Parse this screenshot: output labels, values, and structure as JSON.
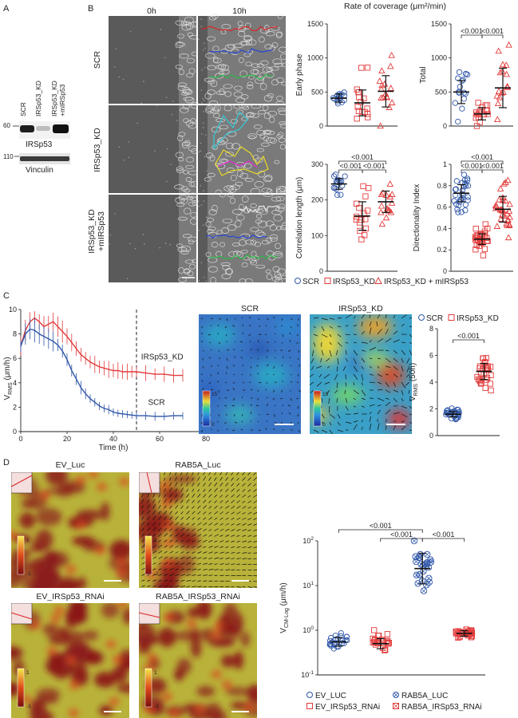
{
  "panels": {
    "A": {
      "letter": "A",
      "lanes": [
        "SCR",
        "IRSp53_KD",
        "IRSp53_KD +mIRSp53"
      ],
      "mw_top": "60",
      "mw_bottom": "110",
      "band1": "IRSp53",
      "band2": "Vinculin"
    },
    "B": {
      "letter": "B",
      "time0": "0h",
      "time10": "10h",
      "rows": [
        "SCR",
        "IRSp53_KD",
        "IRSp53_KD +mIRSp53"
      ],
      "title": "Rate of coverage (μm²/min)",
      "legend": [
        "SCR",
        "IRSp53_KD",
        "IRSp53_KD + mIRSp53"
      ]
    },
    "C": {
      "letter": "C",
      "map_titles": [
        "SCR",
        "IRSp53_KD"
      ],
      "cbar_max": "15",
      "cbar_min": "0",
      "legend": [
        "SCR",
        "IRSp53_KD"
      ]
    },
    "D": {
      "letter": "D",
      "map_titles": [
        "EV_Luc",
        "RAB5A_Luc",
        "EV_IRSp53_RNAi",
        "RAB5A_IRSp53_RNAi"
      ],
      "cbar_max": "1",
      "cbar_min": "-1",
      "legend": [
        "EV_LUC",
        "RAB5A_LUC",
        "EV_IRSp53_RNAi",
        "RAB5A_IRSp53_RNAi"
      ]
    }
  },
  "colors": {
    "blue": "#2f56a8",
    "red": "#e23b3b",
    "heat_bg": "#b8b23a",
    "heat_dark": "#8b1a1a"
  },
  "chart_data": [
    {
      "id": "early",
      "type": "scatter",
      "ylabel": "Early phase",
      "ylim": [
        0,
        1500
      ],
      "yticks": [
        0,
        500,
        1000,
        1500
      ],
      "groups": [
        "SCR",
        "IRSp53_KD",
        "IRSp53_KD + mIRSp53"
      ],
      "means": [
        410,
        340,
        510
      ],
      "sd": [
        60,
        190,
        230
      ],
      "annotations": []
    },
    {
      "id": "total",
      "type": "scatter",
      "ylabel": "Total",
      "ylim": [
        0,
        1500
      ],
      "yticks": [
        0,
        500,
        1000,
        1500
      ],
      "groups": [
        "SCR",
        "IRSp53_KD",
        "IRSp53_KD + mIRSp53"
      ],
      "means": [
        500,
        180,
        560
      ],
      "sd": [
        170,
        90,
        290
      ],
      "annotations": [
        {
          "from": 0,
          "to": 1,
          "label": "<0.001"
        },
        {
          "from": 1,
          "to": 2,
          "label": "<0.001"
        }
      ]
    },
    {
      "id": "corr",
      "type": "scatter",
      "ylabel": "Correlation length (μm)",
      "ylim": [
        0,
        300
      ],
      "yticks": [
        0,
        100,
        200,
        300
      ],
      "groups": [
        "SCR",
        "IRSp53_KD",
        "IRSp53_KD + mIRSp53"
      ],
      "means": [
        245,
        155,
        195
      ],
      "sd": [
        15,
        40,
        30
      ],
      "annotations": [
        {
          "from": 0,
          "to": 2,
          "label": "<0.001",
          "level": 2
        },
        {
          "from": 0,
          "to": 1,
          "label": "<0.001",
          "level": 1
        },
        {
          "from": 1,
          "to": 2,
          "label": "<0.001",
          "level": 1
        }
      ]
    },
    {
      "id": "dirindex",
      "type": "scatter",
      "ylabel": "Directionality Index",
      "ylim": [
        0,
        1.0
      ],
      "yticks": [
        0,
        0.2,
        0.4,
        0.6,
        0.8,
        1.0
      ],
      "groups": [
        "SCR",
        "IRSp53_KD",
        "IRSp53_KD + mIRSp53"
      ],
      "means": [
        0.73,
        0.3,
        0.58
      ],
      "sd": [
        0.08,
        0.05,
        0.12
      ],
      "annotations": [
        {
          "from": 0,
          "to": 2,
          "label": "<0.001",
          "level": 2
        },
        {
          "from": 0,
          "to": 1,
          "label": "<0.001",
          "level": 1
        },
        {
          "from": 1,
          "to": 2,
          "label": "<0.001",
          "level": 1
        }
      ]
    },
    {
      "id": "vrms_time",
      "type": "line",
      "xlabel": "Time (h)",
      "ylabel": "V_RMS (μm/h)",
      "xlim": [
        0,
        80
      ],
      "ylim": [
        0,
        10
      ],
      "xticks": [
        0,
        20,
        40,
        60,
        80
      ],
      "yticks": [
        0,
        2,
        4,
        6,
        8,
        10
      ],
      "dashed_at": 50,
      "series": [
        {
          "name": "IRSp53_KD",
          "color": "red",
          "x": [
            0,
            2,
            4,
            6,
            8,
            10,
            12,
            14,
            16,
            18,
            20,
            22,
            24,
            26,
            28,
            30,
            32,
            34,
            36,
            38,
            40,
            42,
            44,
            46,
            48,
            50,
            54,
            58,
            62,
            66,
            70
          ],
          "y": [
            7.0,
            8.3,
            9.0,
            9.3,
            9.0,
            8.6,
            8.8,
            9.0,
            8.6,
            8.2,
            7.8,
            7.3,
            6.8,
            6.3,
            6.0,
            5.7,
            5.5,
            5.3,
            5.2,
            5.1,
            5.0,
            5.0,
            4.9,
            4.9,
            4.9,
            4.9,
            4.8,
            4.7,
            4.7,
            4.6,
            4.6
          ]
        },
        {
          "name": "SCR",
          "color": "blue",
          "x": [
            0,
            2,
            4,
            6,
            8,
            10,
            12,
            14,
            16,
            18,
            20,
            22,
            24,
            26,
            28,
            30,
            32,
            34,
            36,
            38,
            40,
            42,
            44,
            46,
            48,
            50,
            54,
            58,
            62,
            66,
            70
          ],
          "y": [
            7.0,
            8.0,
            8.4,
            8.3,
            8.0,
            7.8,
            7.6,
            7.4,
            7.1,
            6.6,
            5.9,
            5.0,
            4.3,
            3.6,
            3.1,
            2.7,
            2.4,
            2.1,
            1.9,
            1.8,
            1.6,
            1.5,
            1.45,
            1.4,
            1.35,
            1.3,
            1.3,
            1.25,
            1.25,
            1.3,
            1.3
          ]
        }
      ],
      "labels": [
        "IRSp53_KD",
        "SCR"
      ]
    },
    {
      "id": "vrms50",
      "type": "scatter",
      "ylabel": "V_RMS (50h)",
      "ylim": [
        0,
        8
      ],
      "yticks": [
        0,
        2,
        4,
        6,
        8
      ],
      "groups": [
        "SCR",
        "IRSp53_KD"
      ],
      "means": [
        1.6,
        4.8
      ],
      "sd": [
        0.2,
        0.6
      ],
      "annotations": [
        {
          "from": 0,
          "to": 1,
          "label": "<0.001"
        }
      ]
    },
    {
      "id": "vcm",
      "type": "scatter",
      "ylabel": "V_CM-Log (μm/h)",
      "scale": "log",
      "ylim": [
        0.1,
        100
      ],
      "yticks": [
        0.1,
        1,
        10,
        100
      ],
      "ytick_labels": [
        {
          "b": "10",
          "e": "-1"
        },
        {
          "b": "10",
          "e": "0"
        },
        {
          "b": "10",
          "e": "1"
        },
        {
          "b": "10",
          "e": "2"
        }
      ],
      "groups": [
        "EV_LUC",
        "EV_IRSp53_RNAi",
        "RAB5A_LUC",
        "RAB5A_IRSp53_RNAi"
      ],
      "means": [
        0.55,
        0.5,
        24,
        0.85
      ],
      "sd_factor": [
        1.25,
        1.3,
        2.2,
        1.15
      ],
      "annotations": [
        {
          "from": 0,
          "to": 2,
          "label": "<0.001",
          "level": 2
        },
        {
          "from": 1,
          "to": 2,
          "label": "<0.001",
          "level": 1
        },
        {
          "from": 2,
          "to": 3,
          "label": "<0.001",
          "level": 1
        }
      ]
    }
  ]
}
